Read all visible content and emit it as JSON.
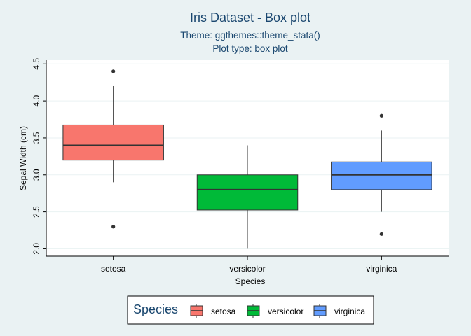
{
  "chart_data": {
    "type": "box",
    "title": "Iris Dataset - Box plot",
    "subtitle_lines": [
      "Theme: ggthemes::theme_stata()",
      "Plot type: box plot"
    ],
    "xlabel": "Species",
    "ylabel": "Sepal Width (cm)",
    "ylim": [
      1.9,
      4.55
    ],
    "yticks": [
      2.0,
      2.5,
      3.0,
      3.5,
      4.0,
      4.5
    ],
    "ytick_labels": [
      "2.0",
      "2.5",
      "3.0",
      "3.5",
      "4.0",
      "4.5"
    ],
    "categories": [
      "setosa",
      "versicolor",
      "virginica"
    ],
    "boxes": [
      {
        "name": "setosa",
        "color": "#F8766D",
        "q1": 3.2,
        "median": 3.4,
        "q3": 3.675,
        "whisker_low": 2.9,
        "whisker_high": 4.2,
        "outliers": [
          4.4,
          2.3
        ]
      },
      {
        "name": "versicolor",
        "color": "#00BA38",
        "q1": 2.525,
        "median": 2.8,
        "q3": 3.0,
        "whisker_low": 2.0,
        "whisker_high": 3.4,
        "outliers": []
      },
      {
        "name": "virginica",
        "color": "#619CFF",
        "q1": 2.8,
        "median": 3.0,
        "q3": 3.175,
        "whisker_low": 2.5,
        "whisker_high": 3.6,
        "outliers": [
          3.8,
          2.2
        ]
      }
    ],
    "grid": "horizontal",
    "legend": {
      "title": "Species",
      "position": "bottom",
      "entries": [
        "setosa",
        "versicolor",
        "virginica"
      ]
    },
    "colors": {
      "background": "#eaf2f3",
      "panel": "#ffffff",
      "title": "#1a476f",
      "grid": "#eaf2f3"
    }
  }
}
